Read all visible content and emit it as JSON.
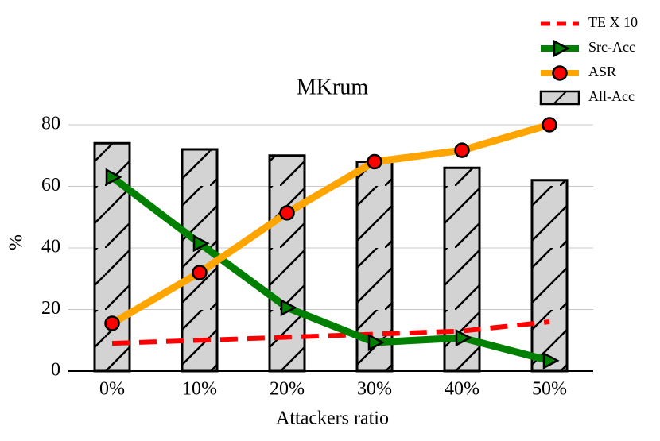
{
  "chart_data": {
    "type": "combo",
    "title": "MKrum",
    "x_label": "Attackers ratio",
    "y_label": "%",
    "categories": [
      "0%",
      "10%",
      "20%",
      "30%",
      "40%",
      "50%"
    ],
    "ylim": [
      0,
      80
    ],
    "yticks": [
      0,
      20,
      40,
      60,
      80
    ],
    "grid": true,
    "legend": "top-right",
    "series": [
      {
        "name": "TE X 10",
        "type": "line",
        "color": "#ff0000",
        "dashed": true,
        "marker": "none",
        "values": [
          9,
          10,
          11,
          12,
          13,
          16
        ]
      },
      {
        "name": "Src-Acc",
        "type": "line",
        "color": "#008000",
        "dashed": false,
        "marker": "triangle",
        "values": [
          63,
          41.5,
          20.6,
          9.3,
          10.8,
          3.4
        ]
      },
      {
        "name": "ASR",
        "type": "line",
        "color": "#ffa500",
        "dashed": false,
        "marker": "circle",
        "values": [
          15.5,
          32,
          51.4,
          68,
          71.7,
          80
        ]
      },
      {
        "name": "All-Acc",
        "type": "bar",
        "color": "#d3d3d3",
        "dashed": false,
        "marker": "none",
        "values": [
          74,
          72,
          70,
          68,
          66,
          62
        ]
      }
    ]
  }
}
